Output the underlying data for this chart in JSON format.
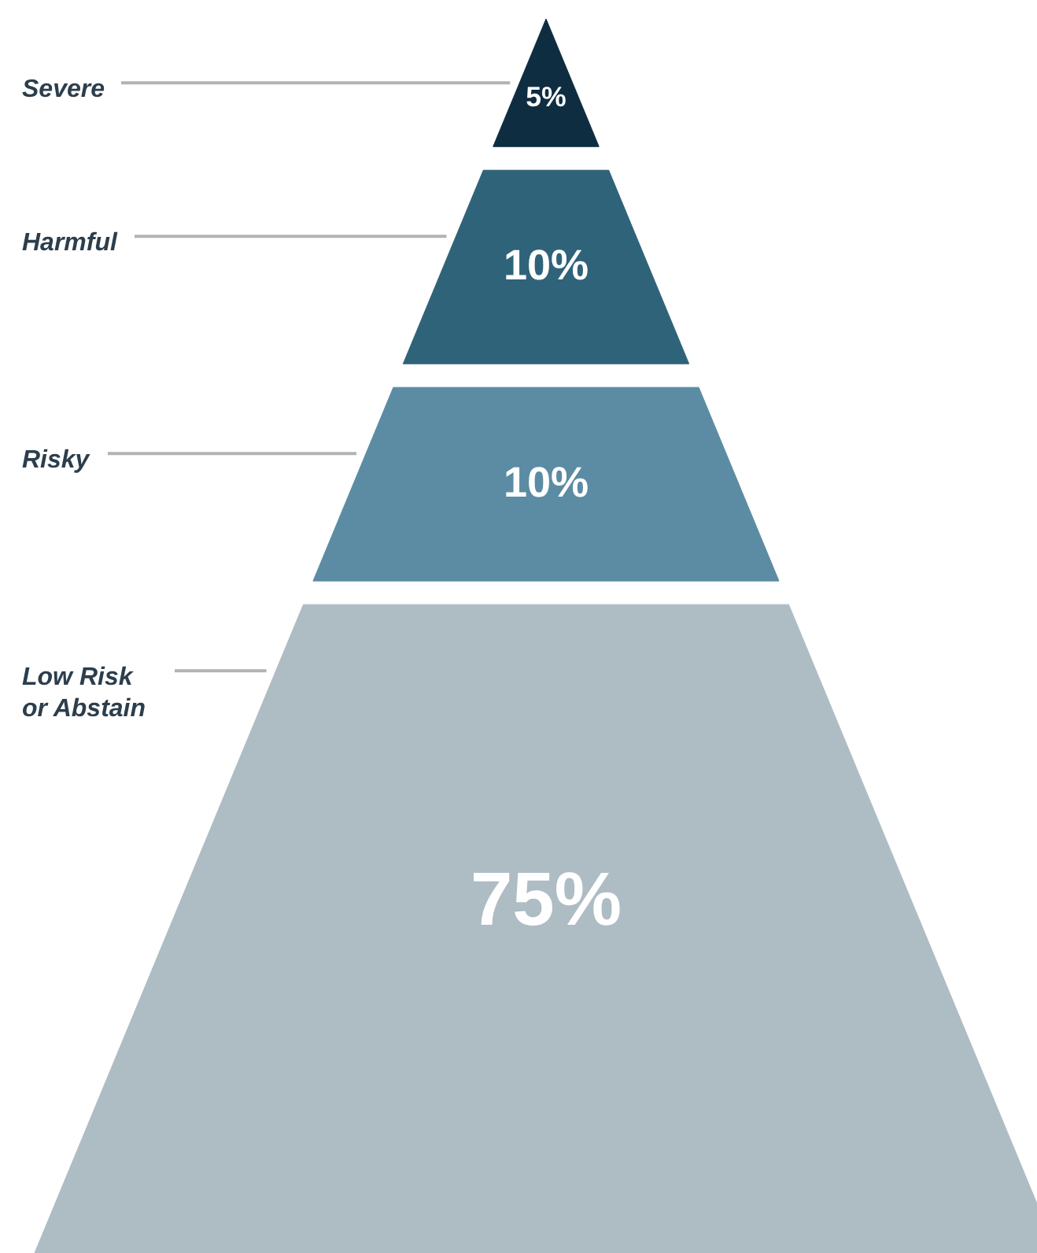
{
  "chart_data": {
    "type": "other",
    "categories": [
      "Severe",
      "Harmful",
      "Risky",
      "Low Risk or Abstain"
    ],
    "values": [
      5,
      10,
      10,
      75
    ],
    "value_labels": [
      "5%",
      "10%",
      "10%",
      "75%"
    ],
    "colors": [
      "#0f2d40",
      "#2f6379",
      "#5b8ca3",
      "#aebcc4"
    ]
  }
}
